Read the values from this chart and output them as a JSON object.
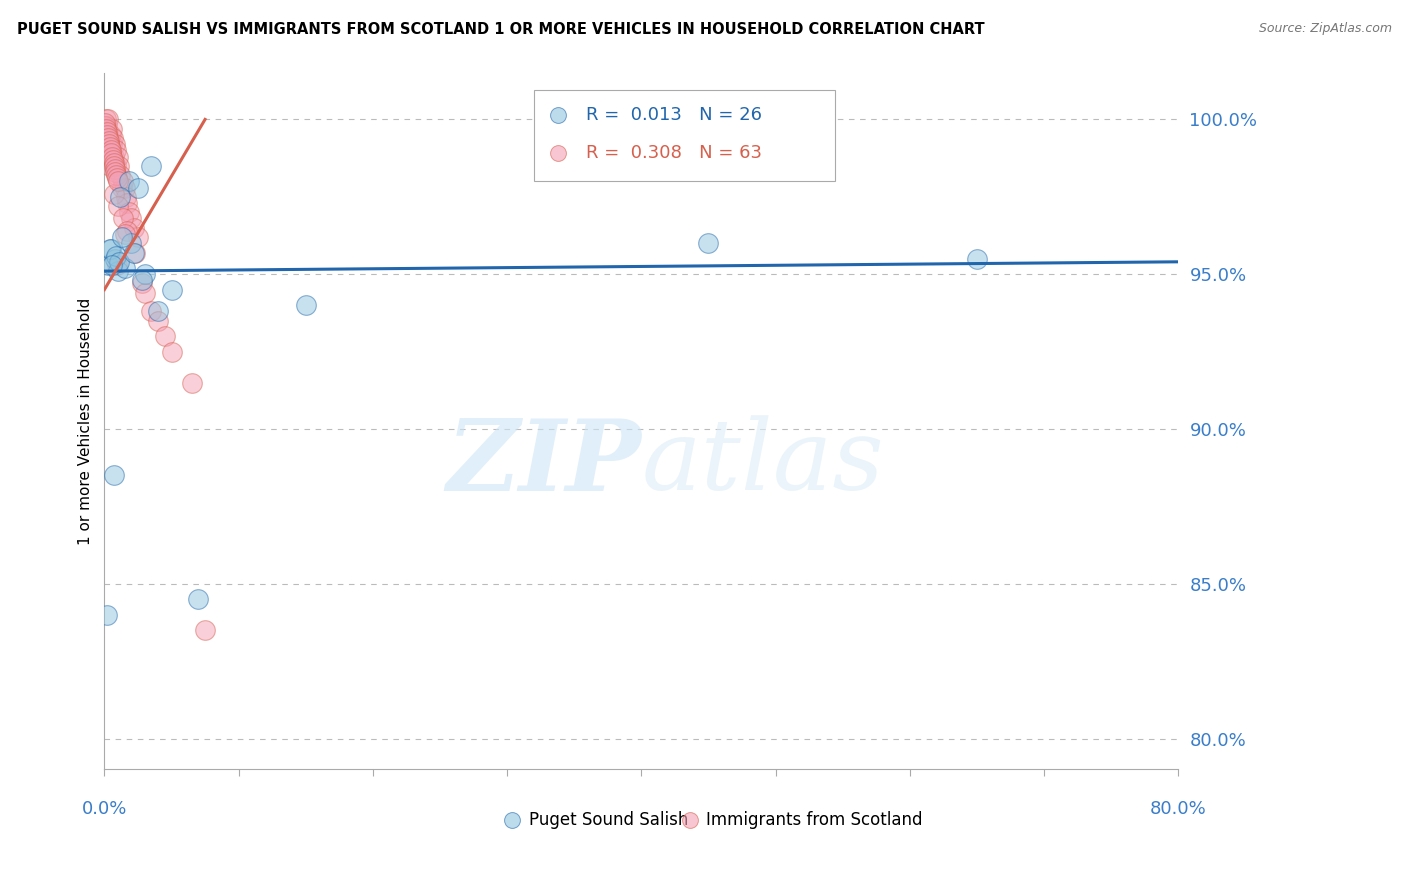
{
  "title": "PUGET SOUND SALISH VS IMMIGRANTS FROM SCOTLAND 1 OR MORE VEHICLES IN HOUSEHOLD CORRELATION CHART",
  "source": "Source: ZipAtlas.com",
  "ylabel_values": [
    100.0,
    95.0,
    90.0,
    85.0,
    80.0
  ],
  "xmin": 0.0,
  "xmax": 80.0,
  "ymin": 79.0,
  "ymax": 101.5,
  "blue_color": "#92c5de",
  "pink_color": "#f4a0b5",
  "blue_line_color": "#2166ac",
  "pink_line_color": "#d6604d",
  "grid_color": "#bbbbbb",
  "axis_label_color": "#3a7eca",
  "blue_scatter_x": [
    0.3,
    0.5,
    0.8,
    1.0,
    1.5,
    1.8,
    2.0,
    2.5,
    3.0,
    5.0,
    0.4,
    0.9,
    2.8,
    4.0,
    1.3,
    1.1,
    65.0,
    45.0,
    0.2,
    7.0,
    0.6,
    1.2,
    2.2,
    15.0,
    3.5,
    0.7
  ],
  "blue_scatter_y": [
    95.3,
    95.8,
    95.5,
    95.1,
    95.2,
    98.0,
    96.0,
    97.8,
    95.0,
    94.5,
    95.8,
    95.6,
    94.8,
    93.8,
    96.2,
    95.4,
    95.5,
    96.0,
    84.0,
    84.5,
    95.3,
    97.5,
    95.7,
    94.0,
    98.5,
    88.5
  ],
  "pink_scatter_x": [
    0.1,
    0.15,
    0.2,
    0.25,
    0.3,
    0.35,
    0.4,
    0.5,
    0.55,
    0.6,
    0.65,
    0.7,
    0.8,
    0.85,
    0.9,
    1.0,
    1.1,
    1.2,
    1.3,
    1.4,
    1.5,
    1.6,
    1.7,
    1.8,
    2.0,
    2.2,
    2.5,
    0.45,
    0.75,
    1.05,
    1.35,
    1.65,
    2.3,
    2.8,
    3.0,
    3.5,
    4.0,
    4.5,
    5.0,
    0.05,
    0.08,
    0.12,
    0.18,
    0.22,
    0.28,
    0.32,
    0.38,
    0.42,
    0.48,
    0.52,
    0.58,
    0.62,
    0.68,
    0.72,
    0.78,
    0.82,
    0.88,
    0.92,
    0.98,
    6.5,
    0.95,
    1.55,
    7.5
  ],
  "pink_scatter_y": [
    99.5,
    100.0,
    99.8,
    99.6,
    100.0,
    99.3,
    99.0,
    99.5,
    99.2,
    99.7,
    99.4,
    98.8,
    99.2,
    98.5,
    99.0,
    98.8,
    98.5,
    98.2,
    97.8,
    98.0,
    97.8,
    97.5,
    97.3,
    97.0,
    96.8,
    96.5,
    96.2,
    98.5,
    97.6,
    97.2,
    96.8,
    96.4,
    95.7,
    94.7,
    94.4,
    93.8,
    93.5,
    93.0,
    92.5,
    99.8,
    99.9,
    99.7,
    99.6,
    99.5,
    99.4,
    99.3,
    99.2,
    99.1,
    99.0,
    98.9,
    98.8,
    98.7,
    98.6,
    98.5,
    98.4,
    98.3,
    98.2,
    98.1,
    98.0,
    91.5,
    95.3,
    96.3,
    83.5
  ],
  "blue_trend_x": [
    0.0,
    80.0
  ],
  "blue_trend_y": [
    95.1,
    95.4
  ],
  "pink_trend_x": [
    0.0,
    7.5
  ],
  "pink_trend_y": [
    94.5,
    100.0
  ],
  "watermark_zip": "ZIP",
  "watermark_atlas": "atlas",
  "bottom_legend_labels": [
    "Puget Sound Salish",
    "Immigrants from Scotland"
  ],
  "legend_text_blue": "R =  0.013   N = 26",
  "legend_text_pink": "R =  0.308   N = 63"
}
